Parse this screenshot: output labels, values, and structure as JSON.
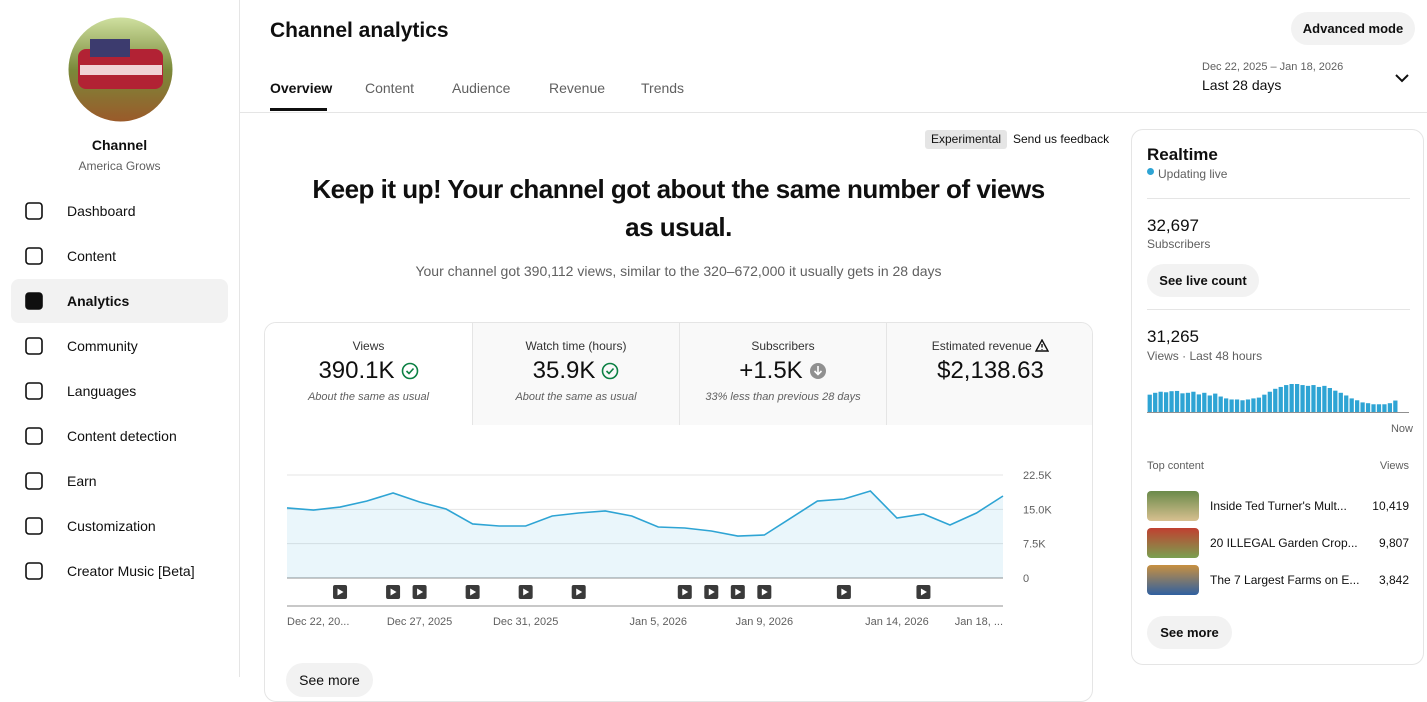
{
  "sidebar": {
    "channel_title": "Channel",
    "channel_name": "America Grows",
    "nav": [
      "Dashboard",
      "Content",
      "Analytics",
      "Community",
      "Languages",
      "Content detection",
      "Earn",
      "Customization",
      "Creator Music [Beta]"
    ]
  },
  "header": {
    "title": "Channel analytics",
    "advanced_mode": "Advanced mode",
    "tabs": [
      "Overview",
      "Content",
      "Audience",
      "Revenue",
      "Trends"
    ],
    "date_range": "Dec 22, 2025 – Jan 18, 2026",
    "period": "Last 28 days"
  },
  "main": {
    "badge": "Experimental",
    "feedback": "Send us feedback",
    "headline_1": "Keep it up! Your channel got about the same number of views",
    "headline_2": "as usual.",
    "subhead": "Your channel got 390,112 views, similar to the 320–672,000 it usually gets in 28 days",
    "metrics": [
      {
        "label": "Views",
        "value": "390.1K",
        "note": "About the same as usual"
      },
      {
        "label": "Watch time (hours)",
        "value": "35.9K",
        "note": "About the same as usual"
      },
      {
        "label": "Subscribers",
        "value": "+1.5K",
        "note": "33% less than previous 28 days"
      },
      {
        "label": "Estimated revenue",
        "value": "$2,138.63"
      }
    ],
    "see_more": "See more"
  },
  "realtime": {
    "title": "Realtime",
    "status": "Updating live",
    "subscribers": "32,697",
    "subscribers_label": "Subscribers",
    "live_count": "See live count",
    "views": "31,265",
    "views_label": "Views · Last 48 hours",
    "top_content": "Top content",
    "views_header": "Views",
    "items": [
      {
        "title": "Inside Ted Turner's Mult...",
        "views": "10,419"
      },
      {
        "title": "20 ILLEGAL Garden Crop...",
        "views": "9,807"
      },
      {
        "title": "The 7 Largest Farms on E...",
        "views": "3,842"
      }
    ],
    "see_more": "See more"
  },
  "chart_data": [
    {
      "type": "area",
      "color": "#2ea4d4",
      "categories": [
        "Dec 22, 20...",
        null,
        null,
        null,
        null,
        "Dec 27, 2025",
        null,
        null,
        null,
        "Dec 31, 2025",
        null,
        null,
        null,
        null,
        "Jan 5, 2026",
        null,
        null,
        null,
        "Jan 9, 2026",
        null,
        null,
        null,
        null,
        "Jan 14, 2026",
        null,
        null,
        null,
        "Jan 18, ..."
      ],
      "values": [
        15300,
        14850,
        15500,
        16800,
        18570,
        16600,
        15070,
        11800,
        11360,
        11360,
        13540,
        14200,
        14640,
        13540,
        11140,
        10920,
        10270,
        9170,
        9390,
        13100,
        16800,
        17260,
        19000,
        13100,
        13980,
        11580,
        14200,
        17910
      ],
      "video_published": [
        2,
        4,
        5,
        7,
        9,
        11,
        15,
        16,
        17,
        18,
        21,
        24
      ],
      "ylim": [
        0,
        22500
      ],
      "yticks": [
        0,
        {
          "value": 7500,
          "label": "7.5K"
        },
        {
          "value": 15000,
          "label": "15.0K"
        },
        {
          "value": 22500,
          "label": "22.5K"
        }
      ],
      "grid": true
    },
    {
      "type": "bar",
      "color": "#2ea4d4",
      "categories": [
        null,
        null,
        null,
        null,
        null,
        null,
        null,
        null,
        null,
        null,
        null,
        null,
        null,
        null,
        null,
        null,
        null,
        null,
        null,
        null,
        null,
        null,
        null,
        null,
        null,
        null,
        null,
        null,
        null,
        null,
        null,
        null,
        null,
        null,
        null,
        null,
        null,
        null,
        null,
        null,
        null,
        null,
        null,
        null,
        null,
        null,
        null,
        "Now"
      ],
      "values": [
        650,
        720,
        760,
        740,
        780,
        790,
        700,
        720,
        760,
        660,
        720,
        620,
        690,
        580,
        510,
        470,
        470,
        440,
        470,
        510,
        540,
        650,
        760,
        870,
        940,
        1010,
        1050,
        1050,
        1010,
        980,
        1010,
        940,
        980,
        900,
        800,
        720,
        620,
        510,
        440,
        360,
        330,
        290,
        290,
        290,
        330,
        430,
        0,
        0
      ]
    }
  ]
}
